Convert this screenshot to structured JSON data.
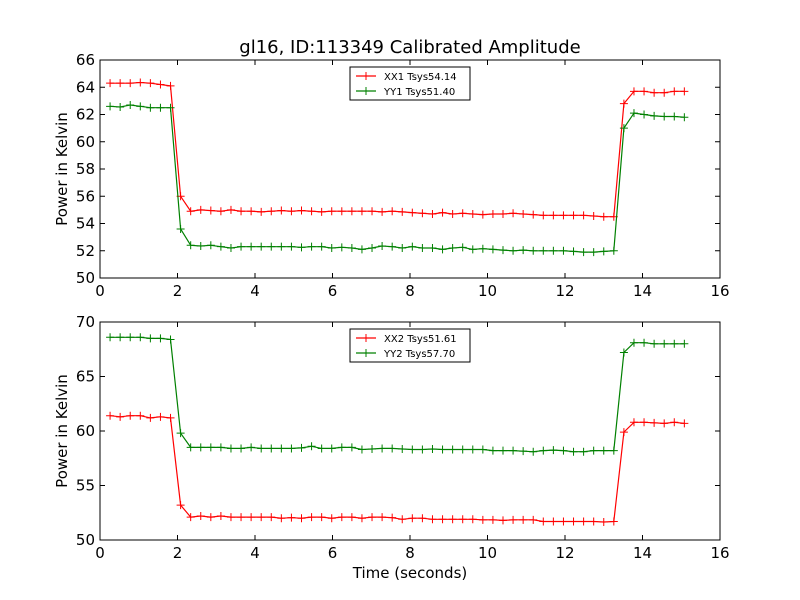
{
  "figure": {
    "title": "gl16, ID:113349 Calibrated Amplitude",
    "xlabel": "Time (seconds)"
  },
  "chart_data": [
    {
      "type": "line",
      "title": "gl16, ID:113349 Calibrated Amplitude",
      "xlabel": "",
      "ylabel": "Power in Kelvin",
      "xlim": [
        0,
        16
      ],
      "ylim": [
        50,
        66
      ],
      "xticks": [
        "0",
        "2",
        "4",
        "6",
        "8",
        "10",
        "12",
        "14",
        "16"
      ],
      "yticks": [
        "50",
        "52",
        "54",
        "56",
        "58",
        "60",
        "62",
        "64",
        "66"
      ],
      "legend_position": "top-center",
      "grid": false,
      "x": [
        0.26,
        0.52,
        0.78,
        1.04,
        1.3,
        1.56,
        1.82,
        2.08,
        2.34,
        2.6,
        2.86,
        3.12,
        3.38,
        3.64,
        3.9,
        4.16,
        4.42,
        4.68,
        4.94,
        5.2,
        5.46,
        5.72,
        5.98,
        6.24,
        6.5,
        6.76,
        7.02,
        7.28,
        7.54,
        7.8,
        8.06,
        8.32,
        8.58,
        8.84,
        9.1,
        9.36,
        9.62,
        9.88,
        10.14,
        10.4,
        10.66,
        10.92,
        11.18,
        11.44,
        11.7,
        11.96,
        12.22,
        12.48,
        12.74,
        13.0,
        13.26,
        13.52,
        13.78,
        14.04,
        14.3,
        14.56,
        14.82,
        15.08
      ],
      "series": [
        {
          "name": "XX1 Tsys54.14",
          "color": "#ff0000",
          "values": [
            64.3,
            64.3,
            64.3,
            64.35,
            64.3,
            64.2,
            64.1,
            56.0,
            54.9,
            55.0,
            54.95,
            54.9,
            55.0,
            54.9,
            54.9,
            54.85,
            54.9,
            54.95,
            54.9,
            54.95,
            54.9,
            54.85,
            54.9,
            54.9,
            54.9,
            54.9,
            54.9,
            54.85,
            54.9,
            54.85,
            54.8,
            54.75,
            54.7,
            54.8,
            54.7,
            54.75,
            54.7,
            54.65,
            54.7,
            54.7,
            54.75,
            54.7,
            54.65,
            54.6,
            54.6,
            54.6,
            54.6,
            54.6,
            54.55,
            54.5,
            54.5,
            62.8,
            63.7,
            63.7,
            63.6,
            63.6,
            63.7,
            63.7
          ]
        },
        {
          "name": "YY1 Tsys51.40",
          "color": "#008000",
          "values": [
            62.6,
            62.55,
            62.7,
            62.6,
            62.5,
            62.5,
            62.5,
            53.6,
            52.4,
            52.35,
            52.4,
            52.3,
            52.2,
            52.3,
            52.3,
            52.3,
            52.3,
            52.3,
            52.3,
            52.25,
            52.3,
            52.3,
            52.2,
            52.25,
            52.2,
            52.1,
            52.2,
            52.35,
            52.3,
            52.2,
            52.3,
            52.2,
            52.2,
            52.1,
            52.2,
            52.25,
            52.1,
            52.15,
            52.1,
            52.05,
            52.0,
            52.05,
            52.0,
            52.0,
            52.0,
            52.0,
            51.95,
            51.9,
            51.9,
            51.95,
            52.0,
            61.0,
            62.1,
            62.0,
            61.9,
            61.85,
            61.85,
            61.8
          ]
        }
      ]
    },
    {
      "type": "line",
      "title": "",
      "xlabel": "Time (seconds)",
      "ylabel": "Power in Kelvin",
      "xlim": [
        0,
        16
      ],
      "ylim": [
        50,
        70
      ],
      "xticks": [
        "0",
        "2",
        "4",
        "6",
        "8",
        "10",
        "12",
        "14",
        "16"
      ],
      "yticks": [
        "50",
        "55",
        "60",
        "65",
        "70"
      ],
      "legend_position": "top-center",
      "grid": false,
      "x": [
        0.26,
        0.52,
        0.78,
        1.04,
        1.3,
        1.56,
        1.82,
        2.08,
        2.34,
        2.6,
        2.86,
        3.12,
        3.38,
        3.64,
        3.9,
        4.16,
        4.42,
        4.68,
        4.94,
        5.2,
        5.46,
        5.72,
        5.98,
        6.24,
        6.5,
        6.76,
        7.02,
        7.28,
        7.54,
        7.8,
        8.06,
        8.32,
        8.58,
        8.84,
        9.1,
        9.36,
        9.62,
        9.88,
        10.14,
        10.4,
        10.66,
        10.92,
        11.18,
        11.44,
        11.7,
        11.96,
        12.22,
        12.48,
        12.74,
        13.0,
        13.26,
        13.52,
        13.78,
        14.04,
        14.3,
        14.56,
        14.82,
        15.08
      ],
      "series": [
        {
          "name": "XX2 Tsys51.61",
          "color": "#ff0000",
          "values": [
            61.4,
            61.3,
            61.4,
            61.4,
            61.2,
            61.3,
            61.2,
            53.2,
            52.1,
            52.2,
            52.1,
            52.2,
            52.1,
            52.1,
            52.1,
            52.1,
            52.1,
            52.0,
            52.05,
            52.0,
            52.1,
            52.1,
            52.0,
            52.1,
            52.1,
            52.0,
            52.1,
            52.1,
            52.05,
            51.9,
            52.0,
            52.0,
            51.9,
            51.9,
            51.9,
            51.9,
            51.9,
            51.85,
            51.85,
            51.8,
            51.85,
            51.85,
            51.85,
            51.7,
            51.7,
            51.7,
            51.7,
            51.7,
            51.7,
            51.65,
            51.7,
            59.9,
            60.8,
            60.8,
            60.75,
            60.7,
            60.8,
            60.7
          ]
        },
        {
          "name": "YY2 Tsys57.70",
          "color": "#008000",
          "values": [
            68.6,
            68.6,
            68.6,
            68.6,
            68.5,
            68.5,
            68.4,
            59.8,
            58.5,
            58.5,
            58.5,
            58.5,
            58.4,
            58.4,
            58.5,
            58.4,
            58.4,
            58.4,
            58.4,
            58.45,
            58.6,
            58.4,
            58.4,
            58.5,
            58.5,
            58.3,
            58.35,
            58.4,
            58.4,
            58.35,
            58.3,
            58.3,
            58.35,
            58.3,
            58.3,
            58.3,
            58.3,
            58.3,
            58.2,
            58.2,
            58.2,
            58.15,
            58.1,
            58.2,
            58.25,
            58.2,
            58.1,
            58.1,
            58.2,
            58.2,
            58.2,
            67.2,
            68.1,
            68.1,
            68.0,
            68.0,
            68.0,
            68.0
          ]
        }
      ]
    }
  ]
}
